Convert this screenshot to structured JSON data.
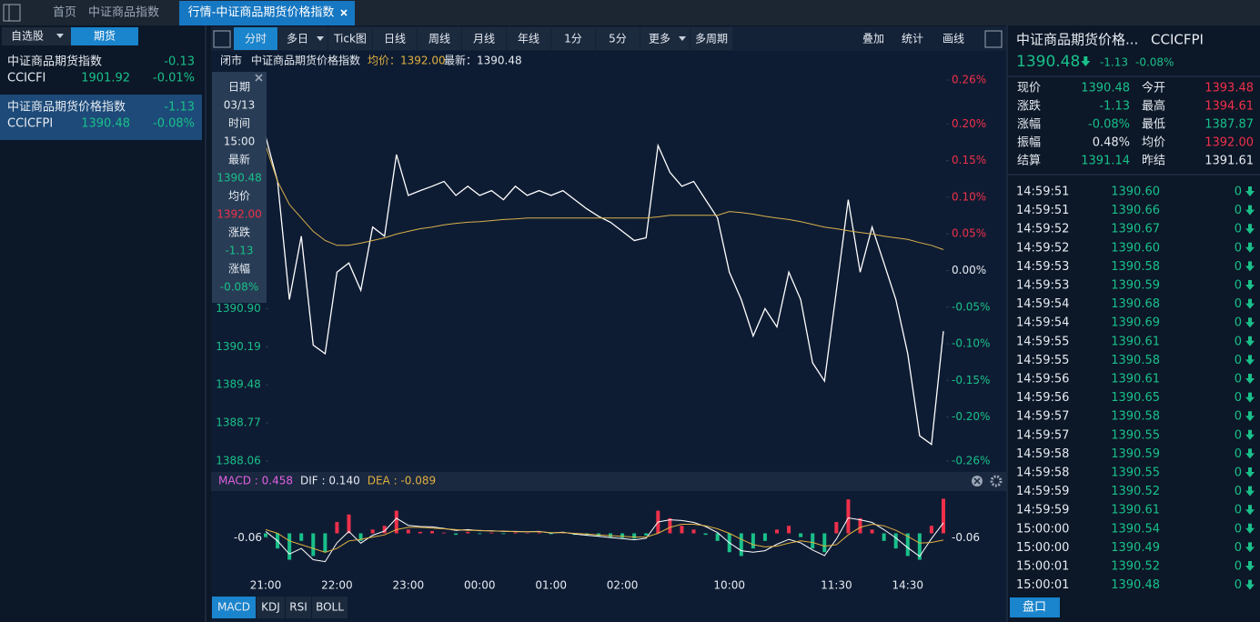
{
  "tabs": [
    "首页",
    "中证商品指数",
    "行情-中证商品期货价格指数"
  ],
  "sidebar": {
    "buttons": [
      "自选股",
      "期货"
    ],
    "items": [
      {
        "name": "中证商品期货指数",
        "change": "-0.13",
        "code": "CCICFI",
        "price": "1901.92",
        "pct": "-0.01%"
      },
      {
        "name": "中证商品期货价格指数",
        "change": "-1.13",
        "code": "CCICFPI",
        "price": "1390.48",
        "pct": "-0.08%"
      }
    ]
  },
  "toolbar": {
    "periods": [
      "分时",
      "多日",
      "Tick图",
      "日线",
      "周线",
      "月线",
      "年线",
      "1分",
      "5分",
      "更多",
      "多周期"
    ],
    "actions": [
      "叠加",
      "统计",
      "画线"
    ]
  },
  "info": {
    "status": "闭市",
    "name": "中证商品期货价格指数",
    "avg": "均价：1392.00",
    "last": "最新：1390.48"
  },
  "tooltip": [
    {
      "label": "日期",
      "value": "03/13",
      "color": "#e6ebf2"
    },
    {
      "label": "时间",
      "value": "15:00",
      "color": "#e6ebf2"
    },
    {
      "label": "最新",
      "value": "1390.48",
      "color": "#19c08a"
    },
    {
      "label": "均价",
      "value": "1392.00",
      "color": "#f0304a"
    },
    {
      "label": "涨跌",
      "value": "-1.13",
      "color": "#19c08a"
    },
    {
      "label": "涨幅",
      "value": "-0.08%",
      "color": "#19c08a"
    }
  ],
  "chart_data": [
    {
      "type": "line",
      "categories": [
        "21:00",
        null,
        null,
        null,
        null,
        null,
        "22:00",
        null,
        null,
        null,
        null,
        null,
        "23:00",
        null,
        null,
        null,
        null,
        null,
        "00:00",
        null,
        null,
        null,
        null,
        null,
        "01:00",
        null,
        null,
        null,
        null,
        null,
        "02:00",
        null,
        null,
        null,
        null,
        null,
        null,
        null,
        null,
        "10:00",
        null,
        null,
        null,
        null,
        null,
        null,
        null,
        null,
        "11:30",
        null,
        null,
        null,
        null,
        null,
        "14:30",
        null,
        null,
        null
      ],
      "series": [
        {
          "color": "#ffffff",
          "values": [
            1394.11,
            1393.27,
            1391.07,
            1392.25,
            1390.22,
            1390.06,
            1391.58,
            1391.75,
            1391.24,
            1392.42,
            1392.25,
            1393.77,
            1393.01,
            1393.1,
            1393.18,
            1393.27,
            1393.01,
            1393.18,
            1393.01,
            1393.1,
            1392.93,
            1393.18,
            1393.01,
            1393.1,
            1393.01,
            1393.1,
            1392.93,
            1392.76,
            1392.62,
            1392.51,
            1392.34,
            1392.17,
            1392.22,
            1393.94,
            1393.44,
            1393.18,
            1393.27,
            1392.93,
            1392.59,
            1391.58,
            1391.07,
            1390.39,
            1390.9,
            1390.56,
            1391.58,
            1391.07,
            1389.89,
            1389.55,
            1391.24,
            1392.93,
            1391.58,
            1392.42,
            1391.75,
            1391.07,
            1390.06,
            1388.53,
            1388.37,
            1390.48
          ]
        },
        {
          "color": "#d8b04c",
          "values": [
            1393.94,
            1393.27,
            1392.84,
            1392.59,
            1392.34,
            1392.17,
            1392.08,
            1392.08,
            1392.12,
            1392.17,
            1392.22,
            1392.29,
            1392.34,
            1392.39,
            1392.42,
            1392.46,
            1392.49,
            1392.51,
            1392.52,
            1392.54,
            1392.56,
            1392.57,
            1392.59,
            1392.59,
            1392.59,
            1392.59,
            1392.59,
            1392.59,
            1392.59,
            1392.59,
            1392.59,
            1392.59,
            1392.59,
            1392.61,
            1392.64,
            1392.64,
            1392.64,
            1392.64,
            1392.64,
            1392.71,
            1392.69,
            1392.66,
            1392.62,
            1392.59,
            1392.56,
            1392.52,
            1392.47,
            1392.42,
            1392.39,
            1392.35,
            1392.32,
            1392.29,
            1392.25,
            1392.22,
            1392.19,
            1392.13,
            1392.08,
            1392.0
          ]
        }
      ],
      "ylim": [
        1388.06,
        1395.16
      ],
      "yticks": [
        {
          "value": 1390.9,
          "label": "1390.90"
        },
        {
          "value": 1390.19,
          "label": "1390.19"
        },
        {
          "value": 1389.48,
          "label": "1389.48"
        },
        {
          "value": 1388.77,
          "label": "1388.77"
        },
        {
          "value": 1388.06,
          "label": "1388.06"
        }
      ],
      "y2lim": [
        -0.26,
        0.26
      ],
      "y2ticks": [
        {
          "value": 0.26,
          "label": "0.26%"
        },
        {
          "value": 0.2,
          "label": "0.20%"
        },
        {
          "value": 0.15,
          "label": "0.15%"
        },
        {
          "value": 0.1,
          "label": "0.10%"
        },
        {
          "value": 0.05,
          "label": "0.05%"
        },
        {
          "value": 0,
          "label": "0.00%"
        },
        {
          "value": -0.05,
          "label": "-0.05%"
        },
        {
          "value": -0.1,
          "label": "-0.10%"
        },
        {
          "value": -0.15,
          "label": "-0.15%"
        },
        {
          "value": -0.2,
          "label": "-0.20%"
        },
        {
          "value": -0.26,
          "label": "-0.26%"
        }
      ]
    },
    {
      "type": "macd",
      "header": [
        {
          "text": "MACD : 0.458",
          "color": "#e060e0"
        },
        {
          "text": "DIF : 0.140",
          "color": "#e6ebf2"
        },
        {
          "text": "DEA : -0.089",
          "color": "#e0b040"
        }
      ],
      "series": [
        {
          "color": "#f0304a",
          "negative_color": "#19c08a",
          "values": [
            -0.05,
            -0.2,
            -0.35,
            -0.1,
            -0.3,
            -0.25,
            0.15,
            0.25,
            -0.1,
            0.05,
            0.1,
            0.3,
            0.05,
            0.02,
            0.03,
            0.01,
            -0.02,
            0.02,
            -0.01,
            0.01,
            -0.01,
            0.01,
            0.0,
            0.01,
            -0.01,
            0.01,
            -0.02,
            -0.03,
            -0.04,
            -0.05,
            -0.06,
            -0.07,
            -0.03,
            0.3,
            0.2,
            0.1,
            0.05,
            -0.02,
            -0.1,
            -0.25,
            -0.3,
            -0.2,
            -0.1,
            0.05,
            0.1,
            -0.05,
            -0.2,
            -0.25,
            0.15,
            0.45,
            0.2,
            0.05,
            -0.1,
            -0.2,
            -0.3,
            -0.35,
            0.1,
            0.458
          ]
        },
        {
          "color": "#ffffff",
          "values": [
            0.025,
            -0.1,
            -0.275,
            -0.2,
            -0.35,
            -0.375,
            -0.125,
            0.025,
            -0.13,
            -0.025,
            0.03,
            0.2,
            0.105,
            0.09,
            0.085,
            0.065,
            0.04,
            0.05,
            0.035,
            0.035,
            0.025,
            0.025,
            0.02,
            0.025,
            0.005,
            0.015,
            -0.01,
            -0.025,
            -0.04,
            -0.055,
            -0.07,
            -0.085,
            -0.065,
            0.15,
            0.18,
            0.17,
            0.145,
            0.09,
            0.01,
            -0.125,
            -0.23,
            -0.25,
            -0.23,
            -0.145,
            -0.08,
            -0.125,
            -0.22,
            -0.295,
            -0.075,
            0.205,
            0.18,
            0.145,
            0.05,
            -0.06,
            -0.19,
            -0.305,
            -0.07,
            0.14
          ]
        },
        {
          "color": "#e0b040",
          "values": [
            0.05,
            0.0,
            -0.1,
            -0.15,
            -0.2,
            -0.25,
            -0.2,
            -0.1,
            -0.08,
            -0.05,
            -0.02,
            0.05,
            0.08,
            0.08,
            0.07,
            0.06,
            0.05,
            0.04,
            0.04,
            0.03,
            0.03,
            0.02,
            0.02,
            0.02,
            0.01,
            0.01,
            0.0,
            -0.01,
            -0.02,
            -0.03,
            -0.04,
            -0.05,
            -0.05,
            0.0,
            0.08,
            0.12,
            0.12,
            0.1,
            0.06,
            0.0,
            -0.08,
            -0.15,
            -0.18,
            -0.17,
            -0.13,
            -0.1,
            -0.12,
            -0.17,
            -0.15,
            -0.02,
            0.08,
            0.12,
            0.1,
            0.04,
            -0.04,
            -0.13,
            -0.12,
            -0.089
          ]
        }
      ],
      "ylim": [
        -0.5,
        0.5
      ],
      "yticks": [
        -0.06
      ]
    }
  ],
  "indicator_tabs": [
    "MACD",
    "KDJ",
    "RSI",
    "BOLL"
  ],
  "quote": {
    "title": "中证商品期货价格...",
    "code": "CCICFPI",
    "price": "1390.48",
    "change": "-1.13",
    "pct": "-0.08%",
    "fields": [
      [
        {
          "label": "现价",
          "value": "1390.48",
          "color": "#19c08a"
        },
        {
          "label": "今开",
          "value": "1393.48",
          "color": "#f0304a"
        }
      ],
      [
        {
          "label": "涨跌",
          "value": "-1.13",
          "color": "#19c08a"
        },
        {
          "label": "最高",
          "value": "1394.61",
          "color": "#f0304a"
        }
      ],
      [
        {
          "label": "涨幅",
          "value": "-0.08%",
          "color": "#19c08a"
        },
        {
          "label": "最低",
          "value": "1387.87",
          "color": "#19c08a"
        }
      ],
      [
        {
          "label": "振幅",
          "value": "0.48%",
          "color": "#e6ebf2"
        },
        {
          "label": "均价",
          "value": "1392.00",
          "color": "#f0304a"
        }
      ],
      [
        {
          "label": "结算",
          "value": "1391.14",
          "color": "#19c08a"
        },
        {
          "label": "昨结",
          "value": "1391.61",
          "color": "#e6ebf2"
        }
      ]
    ],
    "ticks": [
      [
        "14:59:51",
        "1390.60",
        "0"
      ],
      [
        "14:59:51",
        "1390.66",
        "0"
      ],
      [
        "14:59:52",
        "1390.67",
        "0"
      ],
      [
        "14:59:52",
        "1390.60",
        "0"
      ],
      [
        "14:59:53",
        "1390.58",
        "0"
      ],
      [
        "14:59:53",
        "1390.59",
        "0"
      ],
      [
        "14:59:54",
        "1390.68",
        "0"
      ],
      [
        "14:59:54",
        "1390.69",
        "0"
      ],
      [
        "14:59:55",
        "1390.61",
        "0"
      ],
      [
        "14:59:55",
        "1390.58",
        "0"
      ],
      [
        "14:59:56",
        "1390.61",
        "0"
      ],
      [
        "14:59:56",
        "1390.65",
        "0"
      ],
      [
        "14:59:57",
        "1390.58",
        "0"
      ],
      [
        "14:59:57",
        "1390.55",
        "0"
      ],
      [
        "14:59:58",
        "1390.59",
        "0"
      ],
      [
        "14:59:58",
        "1390.55",
        "0"
      ],
      [
        "14:59:59",
        "1390.52",
        "0"
      ],
      [
        "14:59:59",
        "1390.61",
        "0"
      ],
      [
        "15:00:00",
        "1390.54",
        "0"
      ],
      [
        "15:00:00",
        "1390.49",
        "0"
      ],
      [
        "15:00:01",
        "1390.52",
        "0"
      ],
      [
        "15:00:01",
        "1390.48",
        "0"
      ]
    ],
    "button": "盘口"
  }
}
